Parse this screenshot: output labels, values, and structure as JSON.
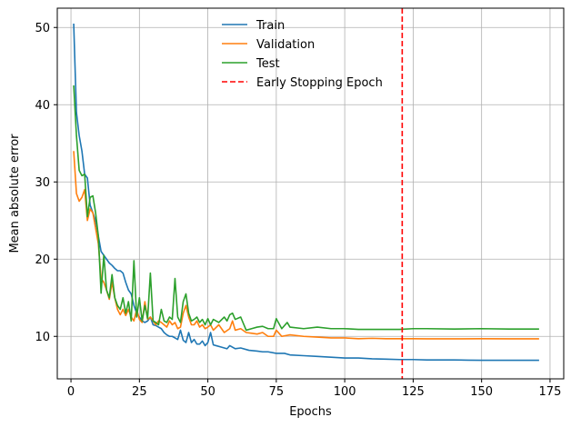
{
  "chart_data": {
    "type": "line",
    "title": "",
    "xlabel": "Epochs",
    "ylabel": "Mean absolute error",
    "xlim": [
      -5,
      180
    ],
    "ylim": [
      4.5,
      52.5
    ],
    "xticks": [
      0,
      25,
      50,
      75,
      100,
      125,
      150,
      175
    ],
    "yticks": [
      10,
      20,
      30,
      40,
      50
    ],
    "grid": true,
    "legend_position": "top-center",
    "early_stopping_epoch": 121,
    "series": [
      {
        "name": "Train",
        "color": "#1f77b4",
        "style": "solid",
        "points": [
          [
            1,
            50.5
          ],
          [
            2,
            39
          ],
          [
            3,
            36
          ],
          [
            4,
            34
          ],
          [
            5,
            31
          ],
          [
            6,
            30.5
          ],
          [
            7,
            27
          ],
          [
            8,
            26
          ],
          [
            9,
            25
          ],
          [
            10,
            23
          ],
          [
            11,
            21
          ],
          [
            12,
            20.5
          ],
          [
            13,
            20
          ],
          [
            14,
            19.5
          ],
          [
            15,
            19.2
          ],
          [
            16,
            18.8
          ],
          [
            17,
            18.5
          ],
          [
            18,
            18.5
          ],
          [
            19,
            18.2
          ],
          [
            20,
            17
          ],
          [
            21,
            16
          ],
          [
            22,
            15.5
          ],
          [
            23,
            14
          ],
          [
            24,
            13
          ],
          [
            25,
            12.5
          ],
          [
            26,
            12
          ],
          [
            27,
            11.8
          ],
          [
            28,
            12
          ],
          [
            29,
            12.5
          ],
          [
            30,
            11.5
          ],
          [
            31,
            11.4
          ],
          [
            32,
            11.2
          ],
          [
            33,
            11
          ],
          [
            34,
            10.5
          ],
          [
            35,
            10.2
          ],
          [
            36,
            10
          ],
          [
            37,
            10
          ],
          [
            38,
            9.8
          ],
          [
            39,
            9.6
          ],
          [
            40,
            10.8
          ],
          [
            41,
            9.5
          ],
          [
            42,
            9.2
          ],
          [
            43,
            10.5
          ],
          [
            44,
            9.2
          ],
          [
            45,
            9.6
          ],
          [
            46,
            9
          ],
          [
            47,
            9
          ],
          [
            48,
            9.4
          ],
          [
            49,
            8.8
          ],
          [
            50,
            9.2
          ],
          [
            51,
            10.5
          ],
          [
            52,
            8.9
          ],
          [
            53,
            8.8
          ],
          [
            55,
            8.6
          ],
          [
            57,
            8.4
          ],
          [
            58,
            8.8
          ],
          [
            60,
            8.4
          ],
          [
            62,
            8.5
          ],
          [
            65,
            8.2
          ],
          [
            68,
            8.1
          ],
          [
            70,
            8.0
          ],
          [
            72,
            8.0
          ],
          [
            75,
            7.8
          ],
          [
            78,
            7.8
          ],
          [
            80,
            7.6
          ],
          [
            85,
            7.5
          ],
          [
            90,
            7.4
          ],
          [
            95,
            7.3
          ],
          [
            100,
            7.2
          ],
          [
            105,
            7.2
          ],
          [
            110,
            7.1
          ],
          [
            115,
            7.05
          ],
          [
            120,
            7.0
          ],
          [
            125,
            7.0
          ],
          [
            130,
            6.95
          ],
          [
            135,
            6.95
          ],
          [
            140,
            6.95
          ],
          [
            145,
            6.92
          ],
          [
            150,
            6.9
          ],
          [
            155,
            6.9
          ],
          [
            160,
            6.9
          ],
          [
            165,
            6.9
          ],
          [
            171,
            6.9
          ]
        ]
      },
      {
        "name": "Validation",
        "color": "#ff7f0e",
        "style": "solid",
        "points": [
          [
            1,
            34
          ],
          [
            2,
            28.5
          ],
          [
            3,
            27.5
          ],
          [
            4,
            28
          ],
          [
            5,
            29
          ],
          [
            6,
            25
          ],
          [
            7,
            26.5
          ],
          [
            8,
            26
          ],
          [
            9,
            24
          ],
          [
            10,
            22
          ],
          [
            11,
            17.5
          ],
          [
            12,
            17
          ],
          [
            13,
            16
          ],
          [
            14,
            14.8
          ],
          [
            15,
            17
          ],
          [
            16,
            15
          ],
          [
            17,
            13.5
          ],
          [
            18,
            12.8
          ],
          [
            19,
            13.5
          ],
          [
            20,
            12.7
          ],
          [
            21,
            13.5
          ],
          [
            22,
            12.5
          ],
          [
            23,
            12
          ],
          [
            24,
            13.5
          ],
          [
            25,
            12.2
          ],
          [
            26,
            11.8
          ],
          [
            27,
            14.5
          ],
          [
            28,
            12.2
          ],
          [
            29,
            12.5
          ],
          [
            30,
            12
          ],
          [
            31,
            11.5
          ],
          [
            32,
            12
          ],
          [
            33,
            11.8
          ],
          [
            34,
            11.5
          ],
          [
            35,
            11.2
          ],
          [
            36,
            12
          ],
          [
            37,
            11.5
          ],
          [
            38,
            11.8
          ],
          [
            39,
            11
          ],
          [
            40,
            11.2
          ],
          [
            41,
            13
          ],
          [
            42,
            14
          ],
          [
            43,
            12.5
          ],
          [
            44,
            11.5
          ],
          [
            45,
            11.5
          ],
          [
            46,
            12
          ],
          [
            47,
            11.2
          ],
          [
            48,
            11.5
          ],
          [
            49,
            11
          ],
          [
            50,
            11.2
          ],
          [
            51,
            11.5
          ],
          [
            52,
            10.8
          ],
          [
            54,
            11.5
          ],
          [
            56,
            10.5
          ],
          [
            58,
            11
          ],
          [
            59,
            12
          ],
          [
            60,
            10.8
          ],
          [
            62,
            11
          ],
          [
            64,
            10.5
          ],
          [
            66,
            10.4
          ],
          [
            68,
            10.3
          ],
          [
            70,
            10.5
          ],
          [
            72,
            10
          ],
          [
            74,
            10
          ],
          [
            75,
            10.8
          ],
          [
            77,
            10
          ],
          [
            80,
            10.2
          ],
          [
            85,
            10
          ],
          [
            90,
            9.9
          ],
          [
            95,
            9.8
          ],
          [
            100,
            9.8
          ],
          [
            105,
            9.7
          ],
          [
            110,
            9.75
          ],
          [
            115,
            9.7
          ],
          [
            120,
            9.7
          ],
          [
            125,
            9.7
          ],
          [
            130,
            9.68
          ],
          [
            140,
            9.68
          ],
          [
            150,
            9.7
          ],
          [
            160,
            9.68
          ],
          [
            171,
            9.68
          ]
        ]
      },
      {
        "name": "Test",
        "color": "#2ca02c",
        "style": "solid",
        "points": [
          [
            1,
            42.5
          ],
          [
            2,
            36
          ],
          [
            3,
            31.5
          ],
          [
            4,
            30.8
          ],
          [
            5,
            31
          ],
          [
            6,
            25.5
          ],
          [
            7,
            28
          ],
          [
            8,
            28.2
          ],
          [
            9,
            26
          ],
          [
            10,
            23
          ],
          [
            11,
            15.6
          ],
          [
            12,
            20.5
          ],
          [
            13,
            16
          ],
          [
            14,
            15
          ],
          [
            15,
            18
          ],
          [
            16,
            15
          ],
          [
            17,
            14
          ],
          [
            18,
            13.5
          ],
          [
            19,
            15
          ],
          [
            20,
            13
          ],
          [
            21,
            14.5
          ],
          [
            22,
            12
          ],
          [
            23,
            19.8
          ],
          [
            24,
            12.5
          ],
          [
            25,
            15
          ],
          [
            26,
            12
          ],
          [
            27,
            14
          ],
          [
            28,
            12.3
          ],
          [
            29,
            18.2
          ],
          [
            30,
            12
          ],
          [
            31,
            11.8
          ],
          [
            32,
            11.5
          ],
          [
            33,
            13.5
          ],
          [
            34,
            12
          ],
          [
            35,
            11.8
          ],
          [
            36,
            12.5
          ],
          [
            37,
            12.2
          ],
          [
            38,
            17.5
          ],
          [
            39,
            12.5
          ],
          [
            40,
            11.8
          ],
          [
            41,
            14.5
          ],
          [
            42,
            15.5
          ],
          [
            43,
            13
          ],
          [
            44,
            12
          ],
          [
            45,
            12.2
          ],
          [
            46,
            12.5
          ],
          [
            47,
            11.8
          ],
          [
            48,
            12.2
          ],
          [
            49,
            11.5
          ],
          [
            50,
            12.3
          ],
          [
            51,
            11.5
          ],
          [
            52,
            12.2
          ],
          [
            54,
            11.8
          ],
          [
            56,
            12.5
          ],
          [
            57,
            12
          ],
          [
            58,
            12.8
          ],
          [
            59,
            13
          ],
          [
            60,
            12.2
          ],
          [
            62,
            12.5
          ],
          [
            64,
            10.8
          ],
          [
            66,
            11
          ],
          [
            68,
            11.2
          ],
          [
            70,
            11.3
          ],
          [
            72,
            11
          ],
          [
            74,
            11
          ],
          [
            75,
            12.3
          ],
          [
            77,
            11
          ],
          [
            79,
            11.8
          ],
          [
            80,
            11.2
          ],
          [
            85,
            11
          ],
          [
            90,
            11.2
          ],
          [
            95,
            11
          ],
          [
            100,
            11
          ],
          [
            105,
            10.9
          ],
          [
            110,
            10.9
          ],
          [
            115,
            10.9
          ],
          [
            120,
            10.9
          ],
          [
            125,
            11
          ],
          [
            130,
            11
          ],
          [
            140,
            10.95
          ],
          [
            150,
            11
          ],
          [
            160,
            10.95
          ],
          [
            171,
            10.95
          ]
        ]
      },
      {
        "name": "Early Stopping Epoch",
        "color": "#ff0000",
        "style": "dashed",
        "vertical_x": 121
      }
    ]
  }
}
